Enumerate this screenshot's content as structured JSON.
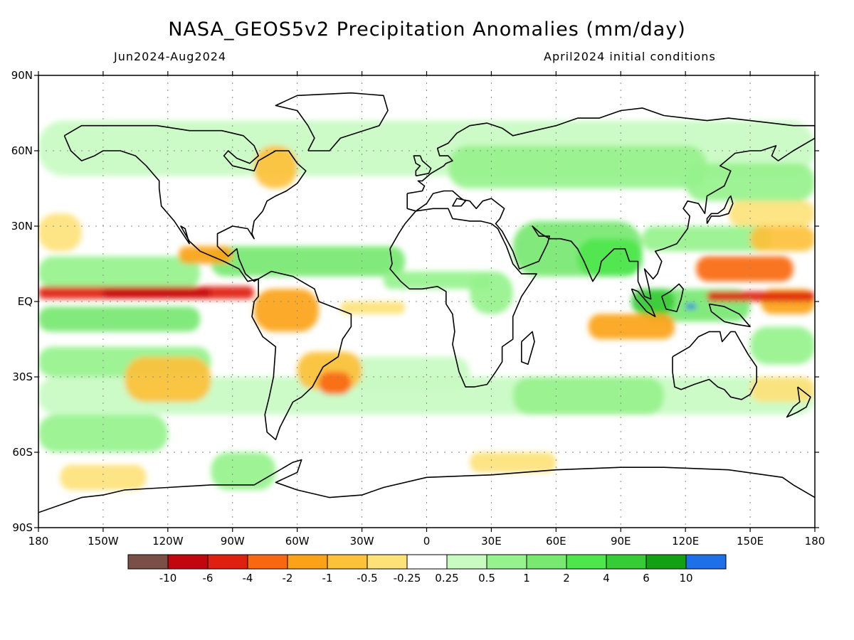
{
  "title": "NASA_GEOS5v2 Precipitation Anomalies (mm/day)",
  "subtitle_left": "Jun2024-Aug2024",
  "subtitle_right": "April2024 initial conditions",
  "lat_labels": [
    "90N",
    "60N",
    "30N",
    "EQ",
    "30S",
    "60S",
    "90S"
  ],
  "lon_labels": [
    "180",
    "150W",
    "120W",
    "90W",
    "60W",
    "30W",
    "0",
    "30E",
    "60E",
    "90E",
    "120E",
    "150E",
    "180"
  ],
  "colorbar": {
    "colors": [
      "#7a4f45",
      "#c3050d",
      "#e01f10",
      "#f9680e",
      "#fba316",
      "#fdc13a",
      "#fde27a",
      "#ffffff",
      "#c8fbc2",
      "#96f28c",
      "#78e871",
      "#4de64d",
      "#37cc37",
      "#14a014",
      "#1f6fe8"
    ],
    "labels": [
      "-10",
      "-6",
      "-4",
      "-2",
      "-1",
      "-0.5",
      "-0.25",
      "0.25",
      "0.5",
      "1",
      "2",
      "4",
      "6",
      "10"
    ]
  },
  "palette": {
    "green_light": "#c8fbc2",
    "green_mid": "#96f28c",
    "green": "#78e871",
    "green_strong": "#4de64d",
    "green_dark": "#37cc37",
    "blue": "#1f6fe8",
    "yellow": "#fde27a",
    "orange_light": "#fdc13a",
    "orange": "#fba316",
    "orange_dark": "#f9680e",
    "red": "#e01f10",
    "red_dark": "#c3050d"
  }
}
